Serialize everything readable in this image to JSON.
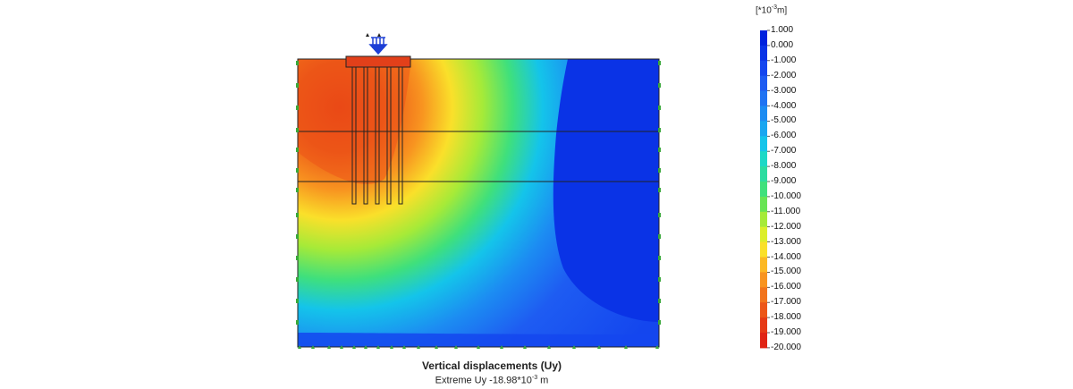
{
  "caption": {
    "title": "Vertical displacements (Uy)",
    "extreme_prefix": "Extreme Uy -18.98*10",
    "extreme_exp": "-3",
    "extreme_unit": " m"
  },
  "legend": {
    "unit_prefix": "[*10",
    "unit_exp": "-3",
    "unit_suffix": "m]",
    "items": [
      {
        "label": "1.000",
        "color": "#0022dd"
      },
      {
        "label": "0.000",
        "color": "#0a33e6"
      },
      {
        "label": "-1.000",
        "color": "#1446ee"
      },
      {
        "label": "-2.000",
        "color": "#1e5cf2"
      },
      {
        "label": "-3.000",
        "color": "#1f73f2"
      },
      {
        "label": "-4.000",
        "color": "#1c8cf2"
      },
      {
        "label": "-5.000",
        "color": "#19a6f0"
      },
      {
        "label": "-6.000",
        "color": "#14c4ea"
      },
      {
        "label": "-7.000",
        "color": "#1cd8c6"
      },
      {
        "label": "-8.000",
        "color": "#2cdca0"
      },
      {
        "label": "-9.000",
        "color": "#3fe07c"
      },
      {
        "label": "-10.000",
        "color": "#68e454"
      },
      {
        "label": "-11.000",
        "color": "#a6ea38"
      },
      {
        "label": "-12.000",
        "color": "#dcee2a"
      },
      {
        "label": "-13.000",
        "color": "#fae02a"
      },
      {
        "label": "-14.000",
        "color": "#fcb824"
      },
      {
        "label": "-15.000",
        "color": "#f89420"
      },
      {
        "label": "-16.000",
        "color": "#f2741c"
      },
      {
        "label": "-17.000",
        "color": "#ec5618"
      },
      {
        "label": "-18.000",
        "color": "#e63a16"
      },
      {
        "label": "-19.000",
        "color": "#e02414"
      },
      {
        "label": "-20.000",
        "color": "#da1412"
      }
    ]
  },
  "colors": {
    "deep_blue": "#0a33e6",
    "blue": "#1446ee",
    "cyan": "#19a6f0",
    "yellow": "#fae02a",
    "red": "#e02414",
    "support": "#3aa83a",
    "load_arrow": "#1c3fd6",
    "outline": "#222222"
  },
  "icons": {
    "load": "distributed-load-arrows-icon",
    "support": "fixity-triangle-icon"
  }
}
